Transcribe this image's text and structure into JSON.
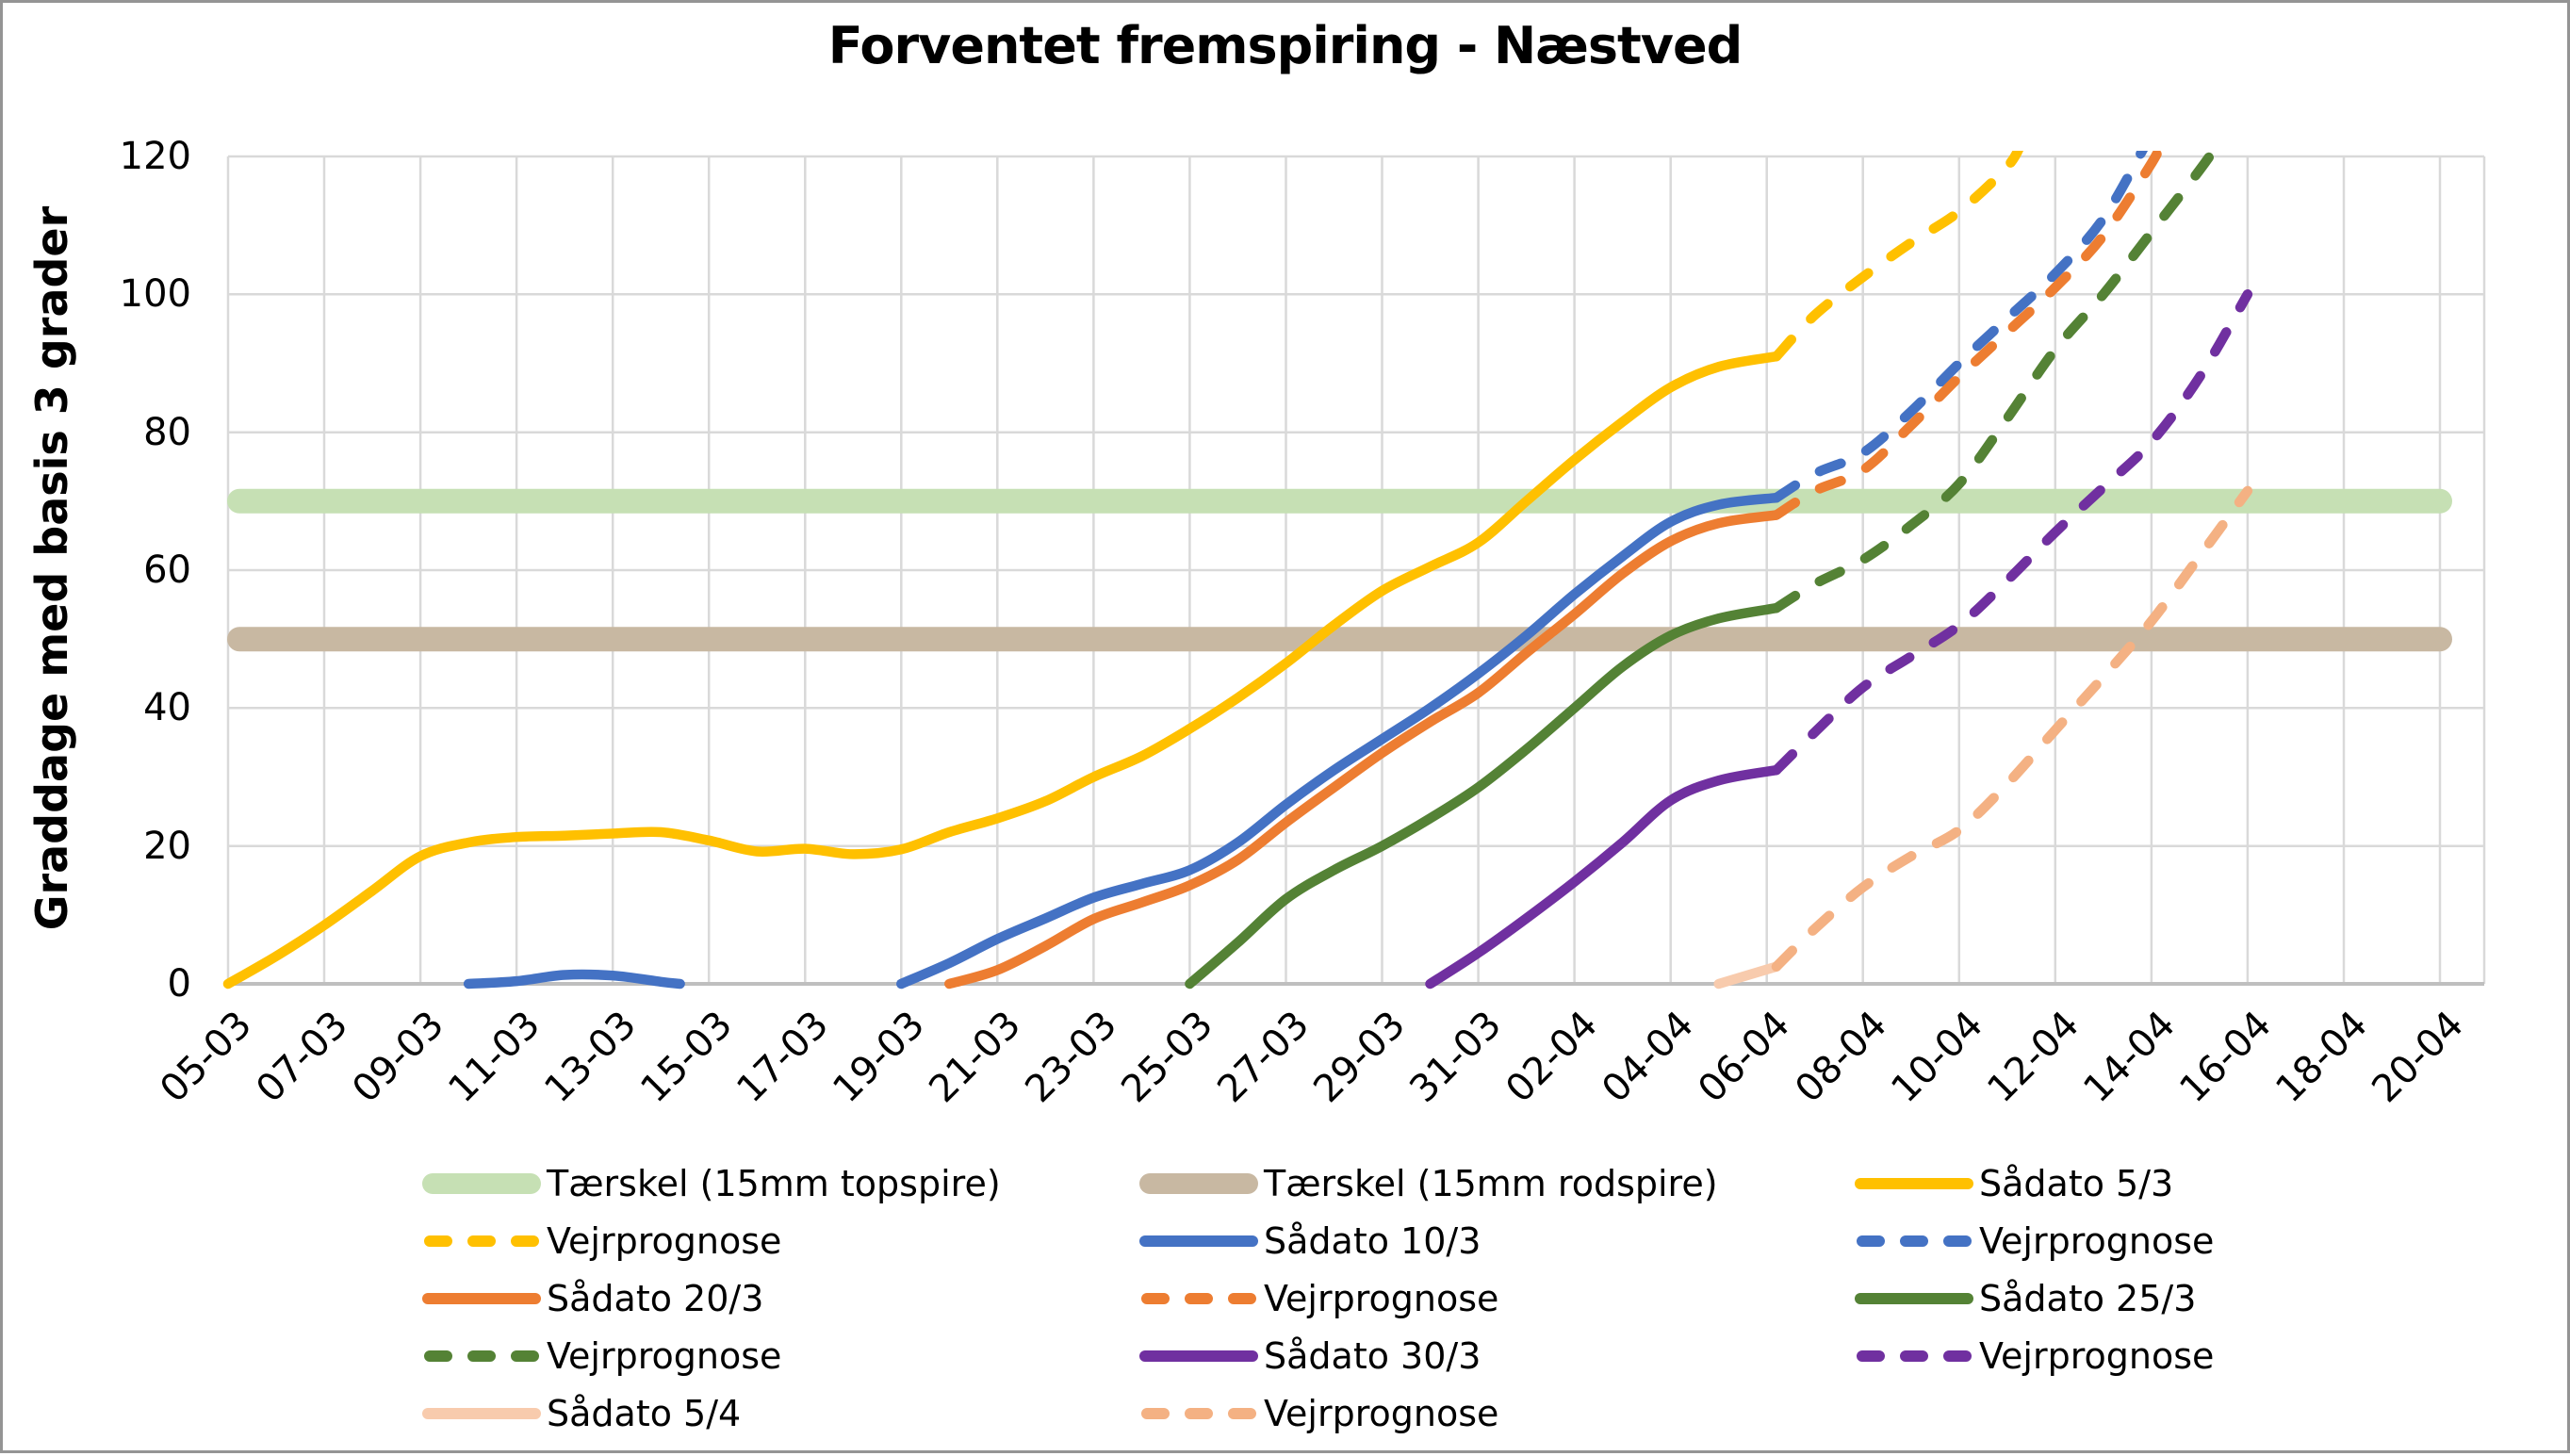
{
  "title": "Forventet fremspiring - Næstved",
  "colors": {
    "grid": "#D9D9D9",
    "axis": "#BFBFBF",
    "text": "#000000",
    "border": "#949494",
    "background": "#FFFFFF"
  },
  "legend": [
    {
      "label": "Tærskel (15mm topspire)",
      "color": "#C6E0B4",
      "style": "band"
    },
    {
      "label": "Tærskel (15mm rodspire)",
      "color": "#C8B8A2",
      "style": "band"
    },
    {
      "label": "Sådato 5/3",
      "color": "#FFC000",
      "style": "solid"
    },
    {
      "label": "Vejrprognose",
      "color": "#FFC000",
      "style": "dashed"
    },
    {
      "label": "Sådato 10/3",
      "color": "#4472C4",
      "style": "solid"
    },
    {
      "label": "Vejrprognose",
      "color": "#4472C4",
      "style": "dashed"
    },
    {
      "label": "Sådato 20/3",
      "color": "#ED7D31",
      "style": "solid"
    },
    {
      "label": "Vejrprognose",
      "color": "#ED7D31",
      "style": "dashed"
    },
    {
      "label": "Sådato 25/3",
      "color": "#548235",
      "style": "solid"
    },
    {
      "label": "Vejrprognose",
      "color": "#548235",
      "style": "dashed"
    },
    {
      "label": "Sådato 30/3",
      "color": "#7030A0",
      "style": "solid"
    },
    {
      "label": "Vejrprognose",
      "color": "#7030A0",
      "style": "dashed"
    },
    {
      "label": "Sådato 5/4",
      "color": "#F8CBAD",
      "style": "solid"
    },
    {
      "label": "Vejrprognose",
      "color": "#F4B183",
      "style": "dashed"
    }
  ],
  "chart_data": {
    "type": "line",
    "title": "Forventet fremspiring - Næstved",
    "xlabel": "",
    "ylabel": "Graddage med basis 3 grader",
    "ylim": [
      0,
      120
    ],
    "y_ticks": [
      0,
      20,
      40,
      60,
      80,
      100,
      120
    ],
    "x_tick_labels": [
      "05-03",
      "07-03",
      "09-03",
      "11-03",
      "13-03",
      "15-03",
      "17-03",
      "19-03",
      "21-03",
      "23-03",
      "25-03",
      "27-03",
      "29-03",
      "31-03",
      "02-04",
      "04-04",
      "06-04",
      "08-04",
      "10-04",
      "12-04",
      "14-04",
      "16-04",
      "18-04",
      "20-04"
    ],
    "x_unit": "day index, 0 = 05-03, 46 = 20-04, gridlines every 2 days",
    "grid": true,
    "legend_position": "bottom",
    "bands": [
      {
        "name": "Tærskel (15mm topspire)",
        "value": 70,
        "color": "#C6E0B4"
      },
      {
        "name": "Tærskel (15mm rodspire)",
        "value": 50,
        "color": "#C8B8A2"
      }
    ],
    "series": [
      {
        "name": "Sådato 5/3",
        "color": "#FFC000",
        "style": "solid",
        "segments": [
          [
            [
              0,
              0
            ],
            [
              1,
              4
            ],
            [
              2,
              8.5
            ],
            [
              3,
              13.5
            ],
            [
              4,
              18.5
            ],
            [
              5,
              20.5
            ],
            [
              6,
              21.3
            ],
            [
              7,
              21.5
            ],
            [
              8,
              21.8
            ],
            [
              9,
              22
            ],
            [
              10,
              20.8
            ],
            [
              11,
              19.2
            ],
            [
              12,
              19.6
            ],
            [
              13,
              18.8
            ],
            [
              14,
              19.5
            ],
            [
              15,
              22
            ],
            [
              16,
              24
            ],
            [
              17,
              26.5
            ],
            [
              18,
              30
            ],
            [
              19,
              33
            ],
            [
              20,
              37
            ],
            [
              21,
              41.5
            ],
            [
              22,
              46.5
            ],
            [
              23,
              52
            ],
            [
              24,
              57
            ],
            [
              25,
              60.5
            ],
            [
              26,
              64
            ],
            [
              27,
              70
            ],
            [
              28,
              76
            ],
            [
              29,
              81.5
            ],
            [
              30,
              86.5
            ],
            [
              31,
              89.5
            ],
            [
              32.2,
              91
            ]
          ]
        ]
      },
      {
        "name": "Vejrprognose (5/3)",
        "color": "#FFC000",
        "style": "dashed",
        "segments": [
          [
            [
              32.2,
              91
            ],
            [
              33,
              97
            ],
            [
              34,
              102.5
            ],
            [
              35,
              107.5
            ],
            [
              36,
              112
            ],
            [
              37,
              118.5
            ],
            [
              37.3,
              122
            ]
          ]
        ]
      },
      {
        "name": "Sådato 10/3",
        "color": "#4472C4",
        "style": "solid",
        "segments": [
          [
            [
              5,
              0
            ],
            [
              6,
              0.4
            ],
            [
              7,
              1.3
            ],
            [
              8,
              1.2
            ],
            [
              9,
              0.3
            ],
            [
              9.4,
              0
            ]
          ],
          [
            [
              14,
              0
            ],
            [
              15,
              3
            ],
            [
              16,
              6.5
            ],
            [
              17,
              9.5
            ],
            [
              18,
              12.5
            ],
            [
              19,
              14.5
            ],
            [
              20,
              16.5
            ],
            [
              21,
              20.5
            ],
            [
              22,
              26
            ],
            [
              23,
              31
            ],
            [
              24,
              35.5
            ],
            [
              25,
              40
            ],
            [
              26,
              45
            ],
            [
              27,
              50.5
            ],
            [
              28,
              56.5
            ],
            [
              29,
              62
            ],
            [
              30,
              67
            ],
            [
              31,
              69.5
            ],
            [
              32.2,
              70.5
            ]
          ]
        ]
      },
      {
        "name": "Vejrprognose (10/3)",
        "color": "#4472C4",
        "style": "dashed",
        "segments": [
          [
            [
              32.2,
              70.5
            ],
            [
              33,
              74
            ],
            [
              34,
              77
            ],
            [
              35,
              83
            ],
            [
              36,
              90
            ],
            [
              37,
              96.5
            ],
            [
              38,
              103
            ],
            [
              39,
              111
            ],
            [
              39.9,
              122
            ]
          ]
        ]
      },
      {
        "name": "Sådato 20/3",
        "color": "#ED7D31",
        "style": "solid",
        "segments": [
          [
            [
              15,
              0
            ],
            [
              16,
              2
            ],
            [
              17,
              5.5
            ],
            [
              18,
              9.4
            ],
            [
              19,
              11.8
            ],
            [
              20,
              14.3
            ],
            [
              21,
              18
            ],
            [
              22,
              23.4
            ],
            [
              23,
              28.5
            ],
            [
              24,
              33.5
            ],
            [
              25,
              38
            ],
            [
              26,
              42.2
            ],
            [
              27,
              48
            ],
            [
              28,
              53.6
            ],
            [
              29,
              59.5
            ],
            [
              30,
              64.2
            ],
            [
              31,
              66.8
            ],
            [
              32.2,
              68
            ]
          ]
        ]
      },
      {
        "name": "Vejrprognose (20/3)",
        "color": "#ED7D31",
        "style": "dashed",
        "segments": [
          [
            [
              32.2,
              68
            ],
            [
              33,
              71.5
            ],
            [
              34,
              74.5
            ],
            [
              35,
              81
            ],
            [
              36,
              88
            ],
            [
              37,
              94.5
            ],
            [
              38,
              101
            ],
            [
              39,
              108.5
            ],
            [
              40,
              119
            ],
            [
              40.2,
              122
            ]
          ]
        ]
      },
      {
        "name": "Sådato 25/3",
        "color": "#548235",
        "style": "solid",
        "segments": [
          [
            [
              20,
              0
            ],
            [
              21,
              6
            ],
            [
              22,
              12.3
            ],
            [
              23,
              16.5
            ],
            [
              24,
              20
            ],
            [
              25,
              24
            ],
            [
              26,
              28.5
            ],
            [
              27,
              34
            ],
            [
              28,
              40
            ],
            [
              29,
              46
            ],
            [
              30,
              50.5
            ],
            [
              31,
              53
            ],
            [
              32.2,
              54.5
            ]
          ]
        ]
      },
      {
        "name": "Vejrprognose (25/3)",
        "color": "#548235",
        "style": "dashed",
        "segments": [
          [
            [
              32.2,
              54.5
            ],
            [
              33,
              58
            ],
            [
              34,
              61.5
            ],
            [
              35,
              66.5
            ],
            [
              36,
              72.5
            ],
            [
              37,
              82
            ],
            [
              38,
              92
            ],
            [
              39,
              100
            ],
            [
              40,
              109
            ],
            [
              41,
              118
            ],
            [
              41.4,
              122
            ]
          ]
        ]
      },
      {
        "name": "Sådato 30/3",
        "color": "#7030A0",
        "style": "solid",
        "segments": [
          [
            [
              25,
              0
            ],
            [
              26,
              4.5
            ],
            [
              27,
              9.5
            ],
            [
              28,
              14.8
            ],
            [
              29,
              20.5
            ],
            [
              30,
              26.6
            ],
            [
              31,
              29.5
            ],
            [
              32.2,
              31
            ]
          ]
        ]
      },
      {
        "name": "Vejrprognose (30/3)",
        "color": "#7030A0",
        "style": "dashed",
        "segments": [
          [
            [
              32.2,
              31
            ],
            [
              33,
              36.5
            ],
            [
              34,
              43
            ],
            [
              35,
              47.5
            ],
            [
              36,
              52
            ],
            [
              37,
              58.5
            ],
            [
              38,
              65.5
            ],
            [
              39,
              72
            ],
            [
              40,
              78.6
            ],
            [
              41,
              88
            ],
            [
              42,
              100
            ]
          ]
        ]
      },
      {
        "name": "Sådato 5/4",
        "color": "#F8CBAD",
        "style": "solid",
        "segments": [
          [
            [
              31,
              0
            ],
            [
              32.2,
              2.5
            ]
          ]
        ]
      },
      {
        "name": "Vejrprognose (5/4)",
        "color": "#F4B183",
        "style": "dashed",
        "segments": [
          [
            [
              32.2,
              2.5
            ],
            [
              33,
              8
            ],
            [
              34,
              14
            ],
            [
              35,
              18.5
            ],
            [
              36,
              22.3
            ],
            [
              37,
              29
            ],
            [
              38,
              36.8
            ],
            [
              39,
              44.5
            ],
            [
              40,
              52.6
            ],
            [
              41,
              62
            ],
            [
              42,
              71.5
            ]
          ]
        ]
      }
    ]
  }
}
